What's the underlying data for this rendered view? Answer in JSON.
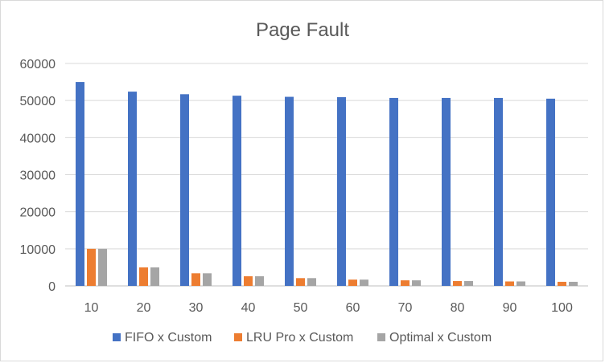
{
  "chart_data": {
    "type": "bar",
    "title": "Page Fault",
    "categories": [
      "10",
      "20",
      "30",
      "40",
      "50",
      "60",
      "70",
      "80",
      "90",
      "100"
    ],
    "series": [
      {
        "name": "FIFO x Custom",
        "color": "#4472C4",
        "values": [
          55000,
          52400,
          51700,
          51300,
          51000,
          50900,
          50700,
          50700,
          50700,
          50500
        ]
      },
      {
        "name": "LRU Pro x Custom",
        "color": "#ED7D31",
        "values": [
          10000,
          5000,
          3400,
          2600,
          2100,
          1700,
          1500,
          1300,
          1200,
          1100
        ]
      },
      {
        "name": "Optimal x Custom",
        "color": "#A5A5A5",
        "values": [
          10000,
          5000,
          3400,
          2600,
          2100,
          1700,
          1500,
          1300,
          1200,
          1100
        ]
      }
    ],
    "yticks": [
      "0",
      "10000",
      "20000",
      "30000",
      "40000",
      "50000",
      "60000"
    ],
    "ylim": [
      0,
      60000
    ],
    "grid": true,
    "legend_position": "bottom"
  }
}
